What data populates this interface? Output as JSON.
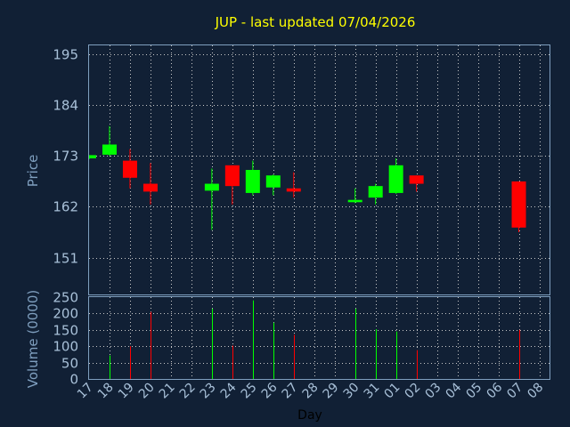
{
  "chart_data": [
    {
      "type": "candlestick",
      "title": "JUP - last updated 07/04/2026",
      "ylabel": "Price",
      "ylim": [
        143,
        197
      ],
      "yticks": [
        151,
        162,
        173,
        184,
        195
      ],
      "grid": true,
      "colors": {
        "up": "#00ff00",
        "down": "#ff0000",
        "grid": "#c8c8c8",
        "frame": "#7f9fbf",
        "background": "#112035",
        "title": "#ffff00"
      },
      "candles": [
        {
          "day": "17",
          "open": 172.5,
          "high": 173.2,
          "low": 172.3,
          "close": 173.2
        },
        {
          "day": "18",
          "open": 173.3,
          "high": 179.5,
          "low": 173.0,
          "close": 175.5
        },
        {
          "day": "19",
          "open": 172.0,
          "high": 174.5,
          "low": 166.0,
          "close": 168.3
        },
        {
          "day": "20",
          "open": 167.0,
          "high": 171.5,
          "low": 162.5,
          "close": 165.3
        },
        {
          "day": "23",
          "open": 165.5,
          "high": 170.3,
          "low": 157.0,
          "close": 167.0
        },
        {
          "day": "24",
          "open": 171.0,
          "high": 171.0,
          "low": 162.5,
          "close": 166.5
        },
        {
          "day": "25",
          "open": 165.0,
          "high": 172.0,
          "low": 164.5,
          "close": 170.0
        },
        {
          "day": "26",
          "open": 166.2,
          "high": 169.0,
          "low": 164.5,
          "close": 168.8
        },
        {
          "day": "27",
          "open": 166.0,
          "high": 169.5,
          "low": 164.0,
          "close": 165.3
        },
        {
          "day": "30",
          "open": 163.0,
          "high": 166.0,
          "low": 162.8,
          "close": 163.5
        },
        {
          "day": "31",
          "open": 164.0,
          "high": 167.0,
          "low": 162.5,
          "close": 166.5
        },
        {
          "day": "01",
          "open": 165.0,
          "high": 172.5,
          "low": 164.8,
          "close": 171.0
        },
        {
          "day": "02",
          "open": 168.8,
          "high": 168.8,
          "low": 165.3,
          "close": 167.0
        },
        {
          "day": "07",
          "open": 167.5,
          "high": 167.5,
          "low": 156.5,
          "close": 157.5
        }
      ]
    },
    {
      "type": "bar",
      "ylabel": "Volume (0000)",
      "ylim": [
        0,
        250
      ],
      "yticks": [
        0,
        50,
        100,
        150,
        200,
        250
      ],
      "grid": true,
      "xlabel": "Day",
      "categories": [
        "17",
        "18",
        "19",
        "20",
        "21",
        "22",
        "23",
        "24",
        "25",
        "26",
        "27",
        "28",
        "29",
        "30",
        "31",
        "01",
        "02",
        "03",
        "04",
        "05",
        "06",
        "07",
        "08"
      ],
      "bars": [
        {
          "day": "18",
          "value": 72,
          "direction": "up"
        },
        {
          "day": "19",
          "value": 100,
          "direction": "down"
        },
        {
          "day": "20",
          "value": 205,
          "direction": "down"
        },
        {
          "day": "23",
          "value": 215,
          "direction": "up"
        },
        {
          "day": "24",
          "value": 102,
          "direction": "down"
        },
        {
          "day": "25",
          "value": 240,
          "direction": "up"
        },
        {
          "day": "26",
          "value": 172,
          "direction": "up"
        },
        {
          "day": "27",
          "value": 135,
          "direction": "down"
        },
        {
          "day": "30",
          "value": 215,
          "direction": "up"
        },
        {
          "day": "31",
          "value": 152,
          "direction": "up"
        },
        {
          "day": "01",
          "value": 145,
          "direction": "up"
        },
        {
          "day": "02",
          "value": 88,
          "direction": "down"
        },
        {
          "day": "07",
          "value": 150,
          "direction": "down"
        }
      ]
    }
  ]
}
